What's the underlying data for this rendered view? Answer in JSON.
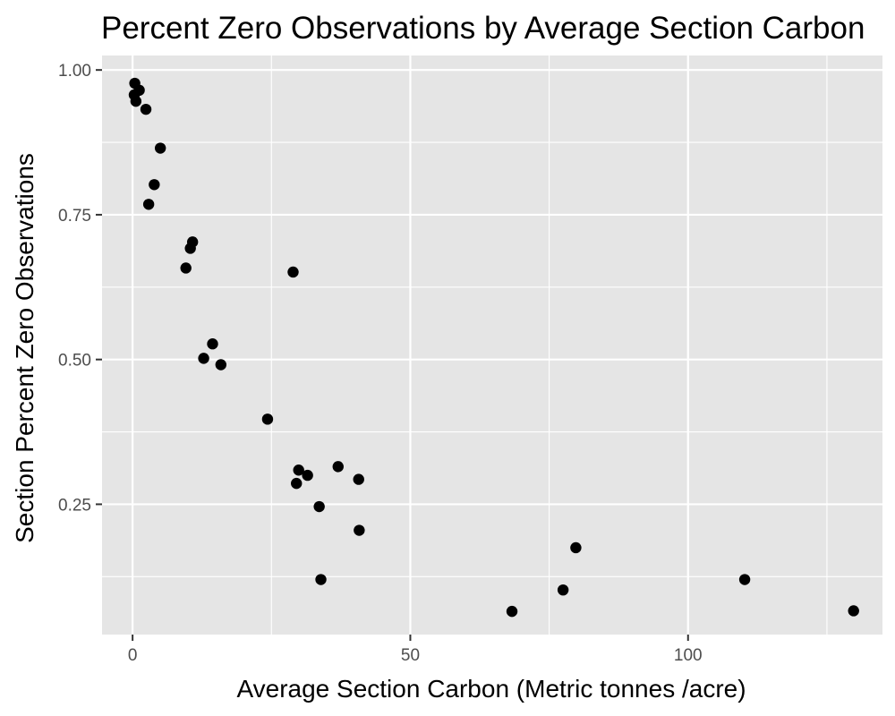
{
  "chart_data": {
    "type": "scatter",
    "title": "Percent Zero Observations by Average Section Carbon",
    "xlabel": "Average Section Carbon (Metric tonnes /acre)",
    "ylabel": "Section Percent Zero Observations",
    "xlim": [
      -5.5,
      135
    ],
    "ylim": [
      0.025,
      1.025
    ],
    "x_ticks": [
      0,
      50,
      100
    ],
    "x_tick_labels": [
      "0",
      "50",
      "100"
    ],
    "x_minor_ticks": [
      25,
      75,
      125
    ],
    "y_ticks": [
      0.25,
      0.5,
      0.75,
      1.0
    ],
    "y_tick_labels": [
      "0.25",
      "0.50",
      "0.75",
      "1.00"
    ],
    "y_minor_ticks": [
      0.125,
      0.375,
      0.625,
      0.875
    ],
    "grid": true,
    "legend": "none",
    "colors": {
      "panel_background": "#e5e5e5",
      "grid": "#ffffff",
      "point": "#000000",
      "tick_text": "#4d4d4d",
      "tick_mark": "#333333"
    },
    "points": [
      {
        "x": 0.4,
        "y": 0.977
      },
      {
        "x": 0.3,
        "y": 0.957
      },
      {
        "x": 1.2,
        "y": 0.965
      },
      {
        "x": 0.6,
        "y": 0.946
      },
      {
        "x": 2.4,
        "y": 0.932
      },
      {
        "x": 5.0,
        "y": 0.865
      },
      {
        "x": 3.9,
        "y": 0.802
      },
      {
        "x": 2.9,
        "y": 0.768
      },
      {
        "x": 10.8,
        "y": 0.703
      },
      {
        "x": 10.4,
        "y": 0.692
      },
      {
        "x": 9.6,
        "y": 0.658
      },
      {
        "x": 28.9,
        "y": 0.651
      },
      {
        "x": 14.4,
        "y": 0.527
      },
      {
        "x": 12.8,
        "y": 0.502
      },
      {
        "x": 15.9,
        "y": 0.491
      },
      {
        "x": 24.3,
        "y": 0.397
      },
      {
        "x": 37.0,
        "y": 0.315
      },
      {
        "x": 29.9,
        "y": 0.309
      },
      {
        "x": 31.5,
        "y": 0.3
      },
      {
        "x": 40.7,
        "y": 0.293
      },
      {
        "x": 29.5,
        "y": 0.286
      },
      {
        "x": 33.6,
        "y": 0.246
      },
      {
        "x": 40.8,
        "y": 0.205
      },
      {
        "x": 79.8,
        "y": 0.175
      },
      {
        "x": 33.9,
        "y": 0.12
      },
      {
        "x": 110.2,
        "y": 0.12
      },
      {
        "x": 77.5,
        "y": 0.102
      },
      {
        "x": 68.3,
        "y": 0.065
      },
      {
        "x": 129.8,
        "y": 0.066
      }
    ]
  }
}
